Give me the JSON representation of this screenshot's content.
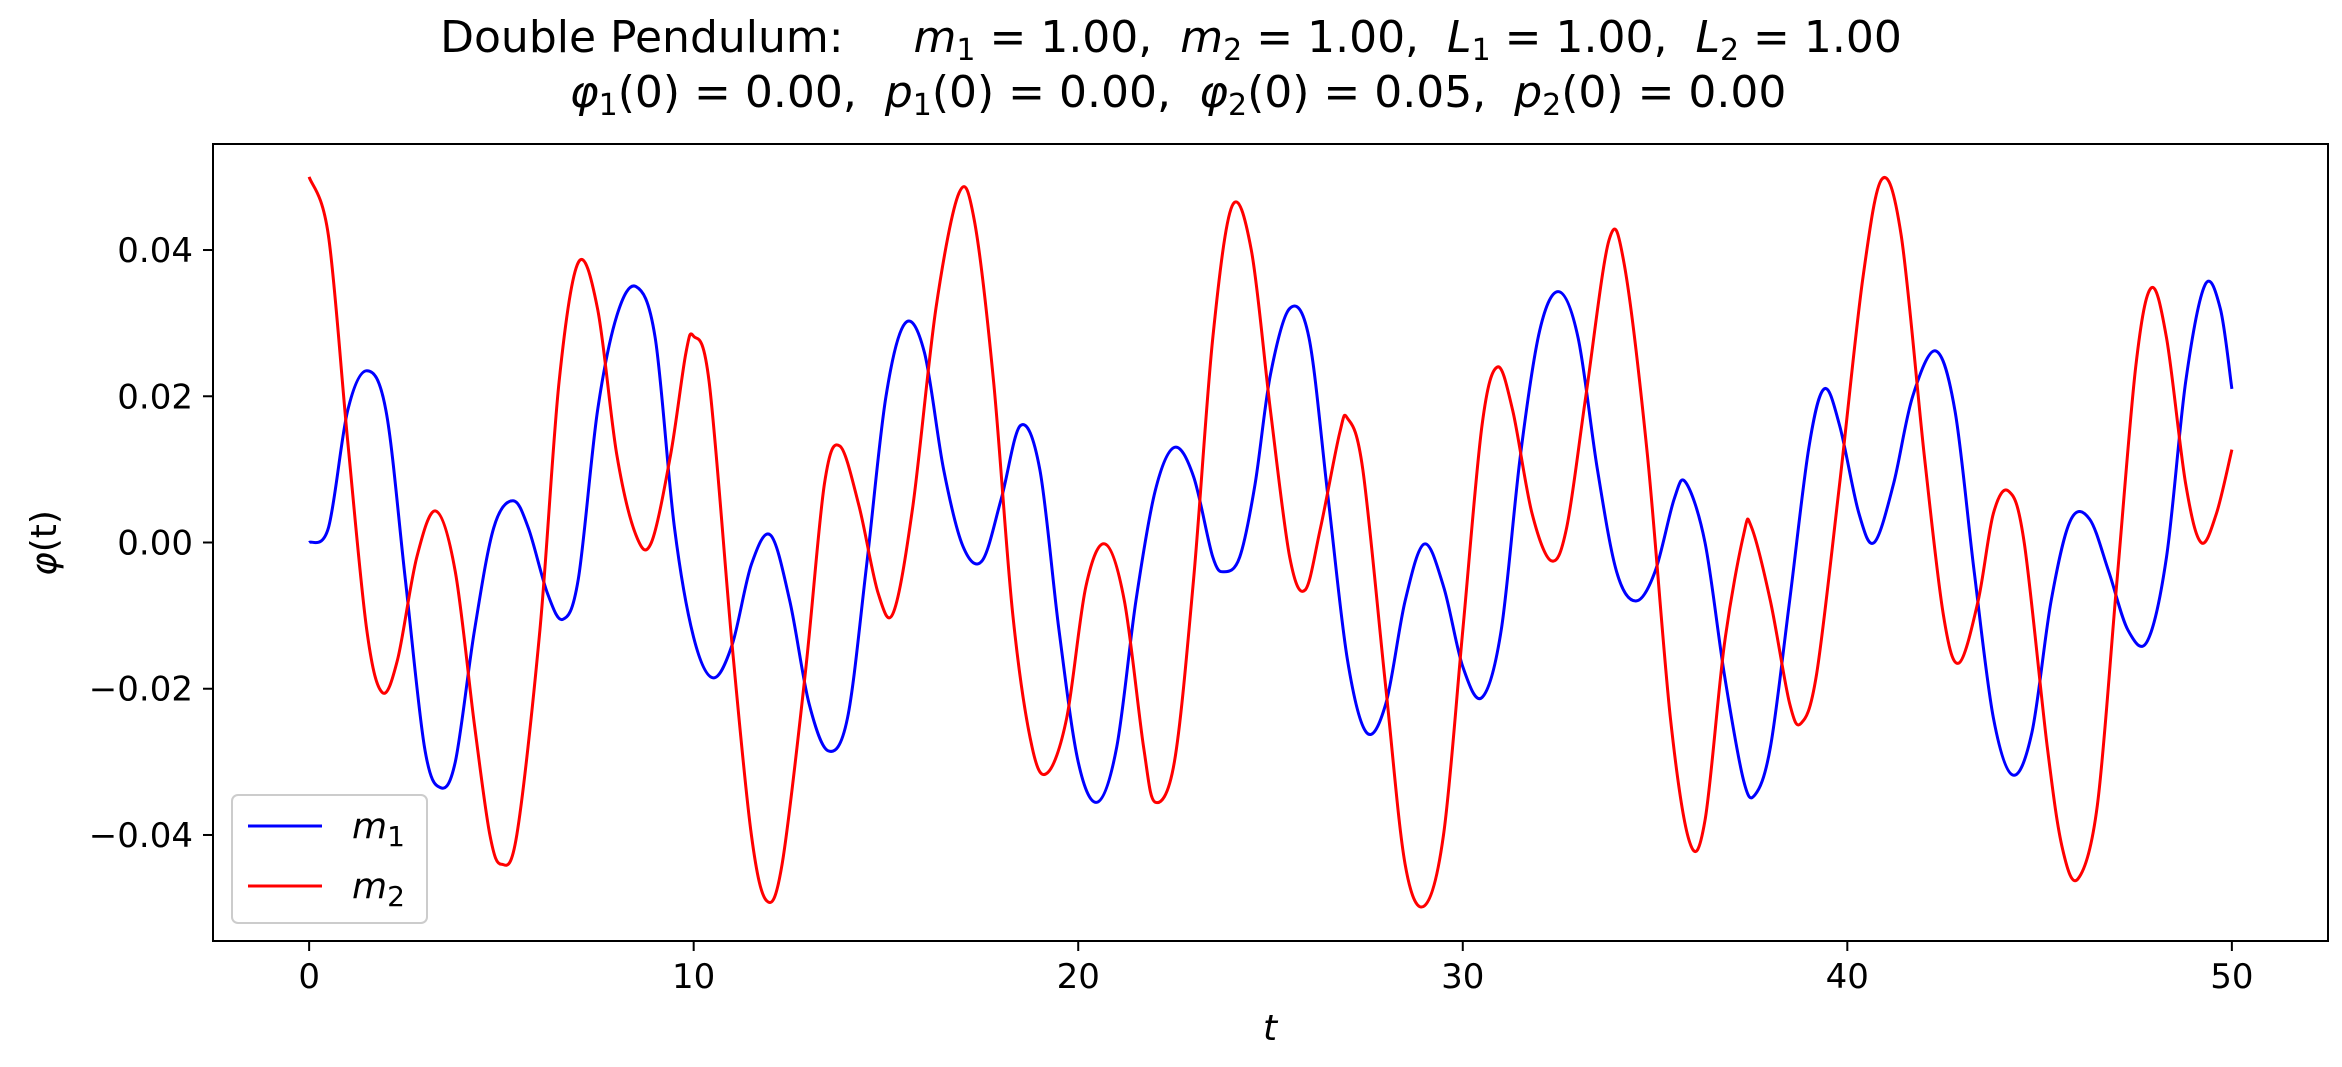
{
  "chart_data": {
    "type": "line",
    "title": {
      "line1": {
        "prefix": "Double Pendulum:",
        "params": [
          {
            "sym": "m",
            "sub": "1",
            "eq": " = 1.00,"
          },
          {
            "sym": "m",
            "sub": "2",
            "eq": " = 1.00,"
          },
          {
            "sym": "L",
            "sub": "1",
            "eq": " = 1.00,"
          },
          {
            "sym": "L",
            "sub": "2",
            "eq": " = 1.00"
          }
        ]
      },
      "line2": {
        "params": [
          {
            "sym": "φ",
            "sub": "1",
            "eq": "(0) = 0.00,"
          },
          {
            "sym": "p",
            "sub": "1",
            "eq": "(0) = 0.00,"
          },
          {
            "sym": "φ",
            "sub": "2",
            "eq": "(0) = 0.05,"
          },
          {
            "sym": "p",
            "sub": "2",
            "eq": "(0) = 0.00"
          }
        ]
      }
    },
    "xlabel": "t",
    "ylabel": {
      "sym": "φ",
      "rest": "(t)"
    },
    "xlim": [
      -2.5,
      52.5
    ],
    "ylim": [
      -0.0545,
      0.0545
    ],
    "xticks": [
      0,
      10,
      20,
      30,
      40,
      50
    ],
    "xtick_labels": [
      "0",
      "10",
      "20",
      "30",
      "40",
      "50"
    ],
    "yticks": [
      -0.04,
      -0.02,
      0.0,
      0.02,
      0.04
    ],
    "ytick_labels": [
      "−0.04",
      "−0.02",
      "0.00",
      "0.02",
      "0.04"
    ],
    "grid": false,
    "legend": {
      "placement": "lower-left"
    },
    "series": [
      {
        "name": {
          "sym": "m",
          "sub": "1"
        },
        "color": "#0000ff",
        "points": [
          [
            0,
            0
          ],
          [
            0.5,
            0.002
          ],
          [
            1.0,
            0.018
          ],
          [
            1.5,
            0.0235
          ],
          [
            2.0,
            0.018
          ],
          [
            2.5,
            -0.005
          ],
          [
            3.0,
            -0.028
          ],
          [
            3.4,
            -0.0335
          ],
          [
            3.8,
            -0.03
          ],
          [
            4.3,
            -0.012
          ],
          [
            4.8,
            0.002
          ],
          [
            5.3,
            0.0057
          ],
          [
            5.7,
            0.002
          ],
          [
            6.2,
            -0.007
          ],
          [
            6.6,
            -0.0105
          ],
          [
            7.0,
            -0.005
          ],
          [
            7.5,
            0.018
          ],
          [
            8.0,
            0.031
          ],
          [
            8.5,
            0.035
          ],
          [
            9.0,
            0.028
          ],
          [
            9.5,
            0.002
          ],
          [
            10.0,
            -0.013
          ],
          [
            10.5,
            -0.0185
          ],
          [
            11.0,
            -0.014
          ],
          [
            11.5,
            -0.003
          ],
          [
            12.0,
            0.001
          ],
          [
            12.5,
            -0.008
          ],
          [
            13.0,
            -0.022
          ],
          [
            13.5,
            -0.0285
          ],
          [
            14.0,
            -0.024
          ],
          [
            14.5,
            -0.003
          ],
          [
            15.0,
            0.02
          ],
          [
            15.5,
            0.03
          ],
          [
            16.0,
            0.026
          ],
          [
            16.5,
            0.01
          ],
          [
            17.0,
            -0.0005
          ],
          [
            17.5,
            -0.0025
          ],
          [
            18.0,
            0.006
          ],
          [
            18.5,
            0.016
          ],
          [
            19.0,
            0.01
          ],
          [
            19.5,
            -0.012
          ],
          [
            20.0,
            -0.03
          ],
          [
            20.5,
            -0.0355
          ],
          [
            21.0,
            -0.028
          ],
          [
            21.5,
            -0.008
          ],
          [
            22.0,
            0.007
          ],
          [
            22.5,
            0.013
          ],
          [
            23.0,
            0.009
          ],
          [
            23.5,
            -0.002
          ],
          [
            23.8,
            -0.004
          ],
          [
            24.2,
            -0.002
          ],
          [
            24.6,
            0.008
          ],
          [
            25.0,
            0.023
          ],
          [
            25.5,
            0.032
          ],
          [
            26.0,
            0.028
          ],
          [
            26.5,
            0.006
          ],
          [
            27.0,
            -0.016
          ],
          [
            27.5,
            -0.026
          ],
          [
            28.0,
            -0.022
          ],
          [
            28.5,
            -0.008
          ],
          [
            29.0,
            -0.0002
          ],
          [
            29.5,
            -0.006
          ],
          [
            30.0,
            -0.017
          ],
          [
            30.5,
            -0.0212
          ],
          [
            31.0,
            -0.012
          ],
          [
            31.5,
            0.012
          ],
          [
            32.0,
            0.029
          ],
          [
            32.5,
            0.0343
          ],
          [
            33.0,
            0.028
          ],
          [
            33.5,
            0.01
          ],
          [
            34.0,
            -0.004
          ],
          [
            34.5,
            -0.008
          ],
          [
            35.0,
            -0.004
          ],
          [
            35.5,
            0.006
          ],
          [
            35.8,
            0.0082
          ],
          [
            36.3,
            0.0
          ],
          [
            36.8,
            -0.018
          ],
          [
            37.3,
            -0.0325
          ],
          [
            37.6,
            -0.0345
          ],
          [
            38.0,
            -0.028
          ],
          [
            38.5,
            -0.008
          ],
          [
            39.0,
            0.013
          ],
          [
            39.4,
            0.021
          ],
          [
            39.8,
            0.016
          ],
          [
            40.3,
            0.004
          ],
          [
            40.7,
            0.0
          ],
          [
            41.2,
            0.008
          ],
          [
            41.7,
            0.02
          ],
          [
            42.3,
            0.0262
          ],
          [
            42.8,
            0.018
          ],
          [
            43.3,
            -0.004
          ],
          [
            43.8,
            -0.024
          ],
          [
            44.3,
            -0.0318
          ],
          [
            44.8,
            -0.026
          ],
          [
            45.3,
            -0.008
          ],
          [
            45.8,
            0.003
          ],
          [
            46.3,
            0.0032
          ],
          [
            46.8,
            -0.004
          ],
          [
            47.3,
            -0.012
          ],
          [
            47.8,
            -0.0135
          ],
          [
            48.3,
            -0.002
          ],
          [
            48.8,
            0.022
          ],
          [
            49.3,
            0.0352
          ],
          [
            49.7,
            0.032
          ],
          [
            50.0,
            0.021
          ]
        ]
      },
      {
        "name": {
          "sym": "m",
          "sub": "2"
        },
        "color": "#ff0000",
        "points": [
          [
            0,
            0.05
          ],
          [
            0.5,
            0.042
          ],
          [
            1.0,
            0.014
          ],
          [
            1.5,
            -0.012
          ],
          [
            1.9,
            -0.0205
          ],
          [
            2.3,
            -0.016
          ],
          [
            2.8,
            -0.002
          ],
          [
            3.3,
            0.0043
          ],
          [
            3.8,
            -0.004
          ],
          [
            4.3,
            -0.025
          ],
          [
            4.7,
            -0.04
          ],
          [
            5.0,
            -0.044
          ],
          [
            5.4,
            -0.04
          ],
          [
            6.0,
            -0.012
          ],
          [
            6.5,
            0.022
          ],
          [
            7.0,
            0.0383
          ],
          [
            7.5,
            0.032
          ],
          [
            8.0,
            0.012
          ],
          [
            8.5,
            0.001
          ],
          [
            8.9,
            0.0
          ],
          [
            9.4,
            0.012
          ],
          [
            9.8,
            0.026
          ],
          [
            10.0,
            0.0282
          ],
          [
            10.4,
            0.022
          ],
          [
            11.0,
            -0.014
          ],
          [
            11.5,
            -0.04
          ],
          [
            11.9,
            -0.049
          ],
          [
            12.3,
            -0.044
          ],
          [
            12.9,
            -0.018
          ],
          [
            13.4,
            0.008
          ],
          [
            13.8,
            0.0132
          ],
          [
            14.3,
            0.005
          ],
          [
            14.8,
            -0.007
          ],
          [
            15.2,
            -0.0095
          ],
          [
            15.7,
            0.005
          ],
          [
            16.3,
            0.032
          ],
          [
            16.9,
            0.0478
          ],
          [
            17.3,
            0.044
          ],
          [
            17.8,
            0.022
          ],
          [
            18.3,
            -0.01
          ],
          [
            18.8,
            -0.028
          ],
          [
            19.2,
            -0.0315
          ],
          [
            19.7,
            -0.024
          ],
          [
            20.2,
            -0.006
          ],
          [
            20.7,
            -0.0002
          ],
          [
            21.2,
            -0.008
          ],
          [
            21.7,
            -0.028
          ],
          [
            22.0,
            -0.0355
          ],
          [
            22.5,
            -0.03
          ],
          [
            23.0,
            -0.005
          ],
          [
            23.5,
            0.028
          ],
          [
            24.0,
            0.046
          ],
          [
            24.5,
            0.04
          ],
          [
            25.0,
            0.018
          ],
          [
            25.5,
            -0.002
          ],
          [
            25.9,
            -0.0065
          ],
          [
            26.3,
            0.002
          ],
          [
            26.8,
            0.015
          ],
          [
            27.0,
            0.017
          ],
          [
            27.4,
            0.01
          ],
          [
            28.0,
            -0.02
          ],
          [
            28.5,
            -0.044
          ],
          [
            29.0,
            -0.0497
          ],
          [
            29.5,
            -0.04
          ],
          [
            30.0,
            -0.012
          ],
          [
            30.5,
            0.016
          ],
          [
            30.9,
            0.024
          ],
          [
            31.3,
            0.018
          ],
          [
            31.8,
            0.004
          ],
          [
            32.3,
            -0.0025
          ],
          [
            32.7,
            0.002
          ],
          [
            33.2,
            0.02
          ],
          [
            33.8,
            0.0413
          ],
          [
            34.2,
            0.038
          ],
          [
            34.8,
            0.012
          ],
          [
            35.4,
            -0.024
          ],
          [
            35.9,
            -0.041
          ],
          [
            36.3,
            -0.038
          ],
          [
            36.8,
            -0.014
          ],
          [
            37.3,
            0.001
          ],
          [
            37.5,
            0.0022
          ],
          [
            38.0,
            -0.008
          ],
          [
            38.5,
            -0.022
          ],
          [
            38.8,
            -0.0247
          ],
          [
            39.2,
            -0.018
          ],
          [
            39.8,
            0.008
          ],
          [
            40.4,
            0.036
          ],
          [
            40.9,
            0.0497
          ],
          [
            41.4,
            0.042
          ],
          [
            42.0,
            0.012
          ],
          [
            42.5,
            -0.01
          ],
          [
            42.9,
            -0.0165
          ],
          [
            43.4,
            -0.008
          ],
          [
            43.8,
            0.004
          ],
          [
            44.2,
            0.007
          ],
          [
            44.6,
            0.0
          ],
          [
            45.2,
            -0.028
          ],
          [
            45.6,
            -0.042
          ],
          [
            46.0,
            -0.046
          ],
          [
            46.5,
            -0.036
          ],
          [
            47.0,
            -0.006
          ],
          [
            47.5,
            0.024
          ],
          [
            47.9,
            0.0348
          ],
          [
            48.3,
            0.028
          ],
          [
            48.8,
            0.008
          ],
          [
            49.2,
            0.0
          ],
          [
            49.6,
            0.004
          ],
          [
            50.0,
            0.0127
          ]
        ]
      }
    ]
  }
}
